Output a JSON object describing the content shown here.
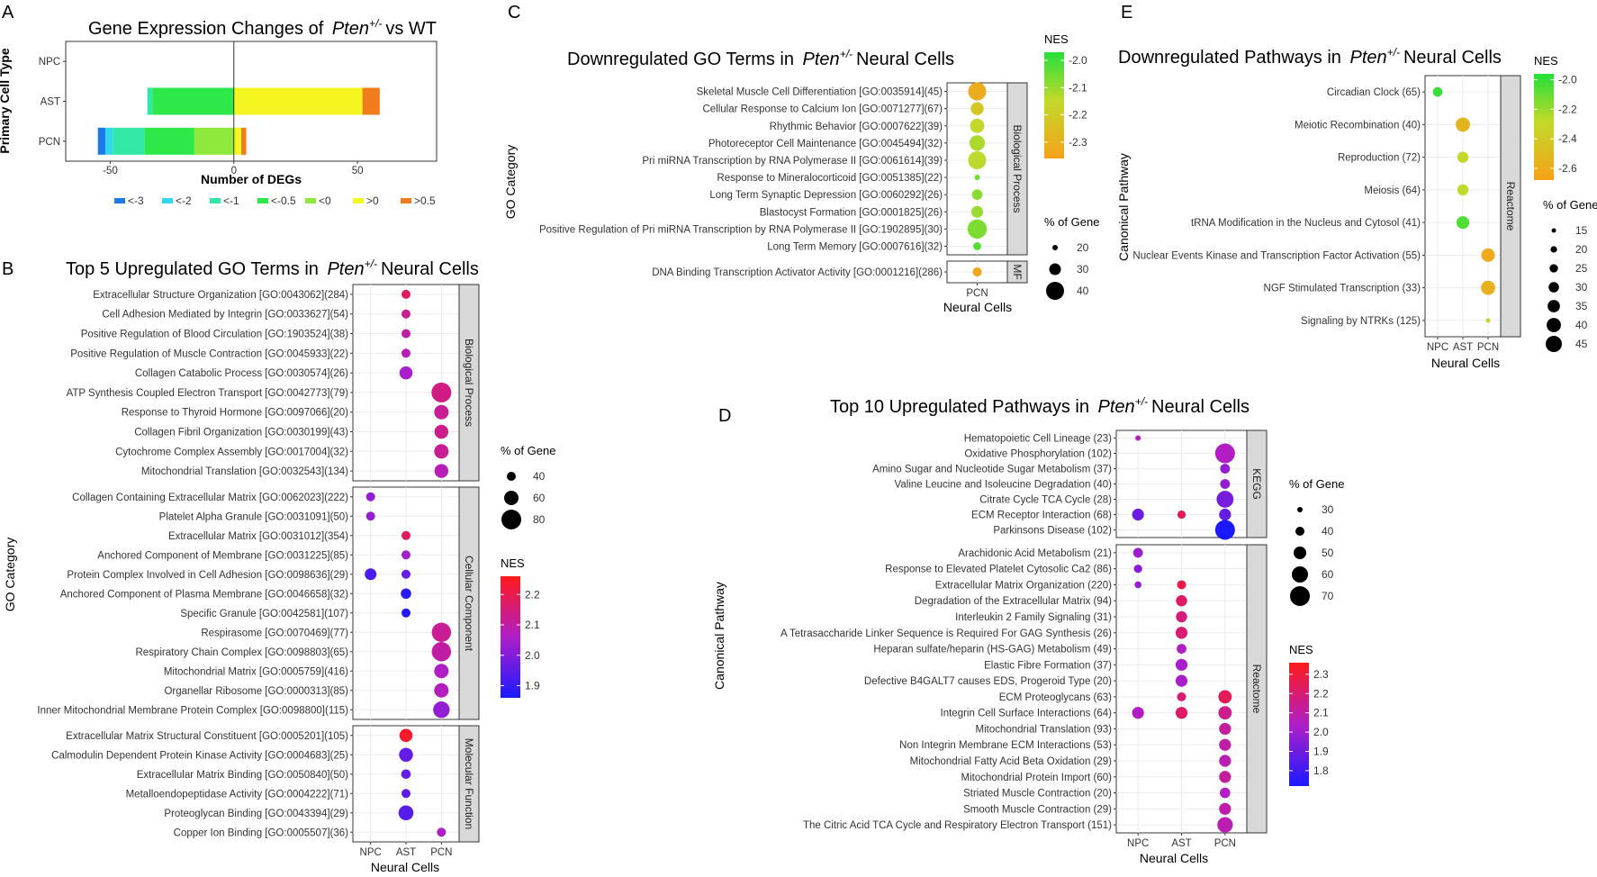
{
  "chart_data": [
    {
      "id": "A",
      "type": "bar",
      "panel_letter": "A",
      "title_pre": "Gene Expression Changes of",
      "title_gene": "Pten",
      "title_sup": "+/-",
      "title_post": "vs WT",
      "xlabel": "Number of DEGs",
      "ylabel": "Primary Cell Type",
      "categories": [
        "NPC",
        "AST",
        "PCN"
      ],
      "xlim": [
        -68,
        82
      ],
      "xticks": [
        -50,
        0,
        50
      ],
      "xtick_labels": [
        "-50",
        "0",
        "50"
      ],
      "legend": [
        {
          "label": "<-3",
          "color": "#1f77e8"
        },
        {
          "label": "<-2",
          "color": "#33d6f0"
        },
        {
          "label": "<-1",
          "color": "#33e8a6"
        },
        {
          "label": "<-0.5",
          "color": "#2ee84a"
        },
        {
          "label": "<0",
          "color": "#8fe83c"
        },
        {
          "label": ">0",
          "color": "#f5f520"
        },
        {
          "label": ">0.5",
          "color": "#f07c1c"
        }
      ],
      "series": [
        {
          "name": "<-3",
          "values": [
            0,
            0,
            -3
          ]
        },
        {
          "name": "<-2",
          "values": [
            0,
            0,
            -3
          ]
        },
        {
          "name": "<-1",
          "values": [
            0,
            -2,
            -13
          ]
        },
        {
          "name": "<-0.5",
          "values": [
            0,
            -33,
            -20
          ]
        },
        {
          "name": "<0",
          "values": [
            0,
            0,
            -16
          ]
        },
        {
          "name": ">0",
          "values": [
            0,
            52,
            3
          ]
        },
        {
          "name": ">0.5",
          "values": [
            0,
            7,
            2
          ]
        }
      ]
    },
    {
      "id": "B",
      "type": "scatter",
      "panel_letter": "B",
      "title_pre": "Top 5 Upregulated GO Terms in",
      "title_gene": "Pten",
      "title_sup": "+/-",
      "title_post": "Neural Cells",
      "xlabel": "Neural Cells",
      "ylabel": "GO Category",
      "x_categories": [
        "NPC",
        "AST",
        "PCN"
      ],
      "facets": [
        {
          "label": "Biological Process",
          "terms": [
            "Extracellular Structure Organization [GO:0043062](284)",
            "Cell Adhesion Mediated by Integrin [GO:0033627](54)",
            "Positive Regulation of Blood Circulation [GO:1903524](38)",
            "Positive Regulation of Muscle Contraction [GO:0045933](22)",
            "Collagen Catabolic Process [GO:0030574](26)",
            "ATP Synthesis Coupled Electron Transport [GO:0042773](79)",
            "Response to Thyroid Hormone [GO:0097066](20)",
            "Collagen Fibril Organization [GO:0030199](43)",
            "Cytochrome Complex Assembly [GO:0017004](32)",
            "Mitochondrial Translation [GO:0032543](134)"
          ]
        },
        {
          "label": "Cellular Component",
          "terms": [
            "Collagen Containing Extracellular Matrix [GO:0062023](222)",
            "Platelet Alpha Granule [GO:0031091](50)",
            "Extracellular Matrix [GO:0031012](354)",
            "Anchored Component of Membrane [GO:0031225](85)",
            "Protein Complex Involved in Cell Adhesion [GO:0098636](29)",
            "Anchored Component of Plasma Membrane [GO:0046658](32)",
            "Specific Granule [GO:0042581](107)",
            "Respirasome [GO:0070469](77)",
            "Respiratory Chain Complex [GO:0098803](65)",
            "Mitochondrial Matrix [GO:0005759](416)",
            "Organellar Ribosome [GO:0000313](85)",
            "Inner Mitochondrial Membrane Protein Complex [GO:0098800](115)"
          ]
        },
        {
          "label": "Molecular Function",
          "terms": [
            "Extracellular Matrix Structural Constituent [GO:0005201](105)",
            "Calmodulin Dependent Protein Kinase Activity [GO:0004683](25)",
            "Extracellular Matrix Binding [GO:0050840](50)",
            "Metalloendopeptidase Activity [GO:0004222](71)",
            "Proteoglycan Binding [GO:0043394](29)",
            "Copper Ion Binding [GO:0005507](36)"
          ]
        }
      ],
      "points": [
        [
          0,
          0,
          1,
          40,
          2.18
        ],
        [
          0,
          1,
          1,
          40,
          2.12
        ],
        [
          0,
          2,
          1,
          38,
          2.1
        ],
        [
          0,
          3,
          1,
          40,
          2.08
        ],
        [
          0,
          4,
          1,
          55,
          2.05
        ],
        [
          0,
          5,
          2,
          80,
          2.14
        ],
        [
          0,
          6,
          2,
          60,
          2.12
        ],
        [
          0,
          7,
          2,
          58,
          2.13
        ],
        [
          0,
          8,
          2,
          60,
          2.12
        ],
        [
          0,
          9,
          2,
          58,
          2.08
        ],
        [
          1,
          0,
          0,
          35,
          2.02
        ],
        [
          1,
          1,
          0,
          40,
          2.02
        ],
        [
          1,
          2,
          1,
          35,
          2.18
        ],
        [
          1,
          3,
          1,
          38,
          2.04
        ],
        [
          1,
          4,
          0,
          50,
          1.93
        ],
        [
          1,
          4,
          1,
          38,
          1.96
        ],
        [
          1,
          5,
          1,
          45,
          1.88
        ],
        [
          1,
          6,
          1,
          10,
          1.87
        ],
        [
          1,
          7,
          2,
          78,
          2.12
        ],
        [
          1,
          8,
          2,
          78,
          2.1
        ],
        [
          1,
          9,
          2,
          60,
          2.06
        ],
        [
          1,
          10,
          2,
          60,
          2.07
        ],
        [
          1,
          11,
          2,
          68,
          2.02
        ],
        [
          2,
          0,
          1,
          55,
          2.24
        ],
        [
          2,
          1,
          1,
          58,
          1.96
        ],
        [
          2,
          2,
          1,
          42,
          1.96
        ],
        [
          2,
          3,
          1,
          40,
          1.95
        ],
        [
          2,
          4,
          1,
          62,
          1.94
        ],
        [
          2,
          5,
          2,
          40,
          2.06
        ]
      ],
      "size_legend": {
        "title": "% of Gene",
        "values": [
          40,
          60,
          80
        ]
      },
      "color_legend": {
        "title": "NES",
        "ticks": [
          1.9,
          2.0,
          2.1,
          2.2
        ],
        "range": [
          1.86,
          2.26
        ]
      }
    },
    {
      "id": "C",
      "type": "scatter",
      "panel_letter": "C",
      "title_pre": "Downregulated GO Terms in",
      "title_gene": "Pten",
      "title_sup": "+/-",
      "title_post": "Neural Cells",
      "xlabel": "Neural Cells",
      "ylabel": "GO Category",
      "x_categories": [
        "PCN"
      ],
      "facets": [
        {
          "label": "Biological Process",
          "terms": [
            "Skeletal Muscle Cell Differentiation [GO:0035914](45)",
            "Cellular Response to Calcium Ion [GO:0071277](67)",
            "Rhythmic Behavior [GO:0007622](39)",
            "Photoreceptor Cell Maintenance [GO:0045494](32)",
            "Pri miRNA Transcription by RNA Polymerase II [GO:0061614](39)",
            "Response to Mineralocorticoid [GO:0051385](22)",
            "Long Term Synaptic Depression [GO:0060292](26)",
            "Blastocyst Formation [GO:0001825](26)",
            "Positive Regulation of Pri miRNA Transcription by RNA Polymerase II [GO:1902895](30)",
            "Long Term Memory [GO:0007616](32)"
          ]
        },
        {
          "label": "MF",
          "terms": [
            "DNA Binding Transcription Activator Activity [GO:0001216](286)"
          ]
        }
      ],
      "points": [
        [
          0,
          0,
          0,
          40,
          -2.32
        ],
        [
          0,
          1,
          0,
          32,
          -2.22
        ],
        [
          0,
          2,
          0,
          34,
          -2.15
        ],
        [
          0,
          3,
          0,
          36,
          -2.12
        ],
        [
          0,
          4,
          0,
          40,
          -2.14
        ],
        [
          0,
          5,
          0,
          12,
          -2.05
        ],
        [
          0,
          6,
          0,
          28,
          -2.08
        ],
        [
          0,
          7,
          0,
          30,
          -2.1
        ],
        [
          0,
          8,
          0,
          42,
          -2.07
        ],
        [
          0,
          9,
          0,
          24,
          -2.02
        ],
        [
          1,
          0,
          0,
          26,
          -2.33
        ]
      ],
      "size_legend": {
        "title": "% of Gene",
        "values": [
          20,
          30,
          40
        ]
      },
      "color_legend": {
        "title": "NES",
        "ticks": [
          -2.0,
          -2.1,
          -2.2,
          -2.3
        ],
        "range": [
          -2.36,
          -1.97
        ]
      }
    },
    {
      "id": "D",
      "type": "scatter",
      "panel_letter": "D",
      "title_pre": "Top 10 Upregulated Pathways in",
      "title_gene": "Pten",
      "title_sup": "+/-",
      "title_post": "Neural Cells",
      "xlabel": "Neural Cells",
      "ylabel": "Canonical Pathway",
      "x_categories": [
        "NPC",
        "AST",
        "PCN"
      ],
      "facets": [
        {
          "label": "KEGG",
          "terms": [
            "Hematopoietic Cell Lineage (23)",
            "Oxidative Phosphorylation (102)",
            "Amino Sugar and Nucleotide Sugar Metabolism (37)",
            "Valine Leucine and Isoleucine Degradation (40)",
            "Citrate Cycle TCA Cycle (28)",
            "ECM Receptor Interaction (68)",
            "Parkinsons Disease (102)"
          ]
        },
        {
          "label": "Reactome",
          "terms": [
            "Arachidonic Acid Metabolism (21)",
            "Response to Elevated Platelet Cytosolic Ca2 (86)",
            "Extracellular Matrix Organization (220)",
            "Degradation of the Extracellular Matrix (94)",
            "Interleukin 2 Family Signaling (31)",
            "A Tetrasaccharide Linker Sequence is Required For GAG Synthesis (26)",
            "Heparan sulfate/heparin (HS-GAG) Metabolism (49)",
            "Elastic Fibre Formation (37)",
            "Defective B4GALT7 causes EDS, Progeroid Type (20)",
            "ECM Proteoglycans (63)",
            "Integrin Cell Surface Interactions (64)",
            "Mitochondrial Translation (93)",
            "Non Integrin Membrane ECM Interactions (53)",
            "Mitochondrial Fatty Acid Beta Oxidation (29)",
            "Mitochondrial Protein Import (60)",
            "Striated Muscle Contraction (20)",
            "Smooth Muscle Contraction (29)",
            "The Citric Acid TCA Cycle and Respiratory Electron Transport (151)"
          ]
        }
      ],
      "points": [
        [
          0,
          0,
          0,
          22,
          2.05
        ],
        [
          0,
          1,
          2,
          70,
          2.05
        ],
        [
          0,
          2,
          2,
          42,
          1.98
        ],
        [
          0,
          3,
          2,
          42,
          1.98
        ],
        [
          0,
          4,
          2,
          62,
          1.92
        ],
        [
          0,
          5,
          0,
          48,
          1.9
        ],
        [
          0,
          5,
          1,
          38,
          2.25
        ],
        [
          0,
          5,
          2,
          48,
          1.88
        ],
        [
          0,
          6,
          2,
          70,
          1.72
        ],
        [
          1,
          0,
          0,
          42,
          2.0
        ],
        [
          1,
          1,
          0,
          38,
          1.95
        ],
        [
          1,
          2,
          0,
          34,
          1.98
        ],
        [
          1,
          2,
          1,
          40,
          2.28
        ],
        [
          1,
          3,
          1,
          46,
          2.22
        ],
        [
          1,
          4,
          1,
          46,
          2.18
        ],
        [
          1,
          5,
          1,
          48,
          2.2
        ],
        [
          1,
          6,
          1,
          42,
          2.05
        ],
        [
          1,
          7,
          1,
          48,
          2.02
        ],
        [
          1,
          8,
          1,
          48,
          2.02
        ],
        [
          1,
          9,
          1,
          40,
          2.2
        ],
        [
          1,
          9,
          2,
          52,
          2.25
        ],
        [
          1,
          10,
          0,
          48,
          2.05
        ],
        [
          1,
          10,
          1,
          48,
          2.22
        ],
        [
          1,
          10,
          2,
          52,
          2.15
        ],
        [
          1,
          11,
          2,
          48,
          2.12
        ],
        [
          1,
          12,
          2,
          48,
          2.1
        ],
        [
          1,
          13,
          2,
          48,
          2.08
        ],
        [
          1,
          14,
          2,
          48,
          2.12
        ],
        [
          1,
          15,
          2,
          44,
          2.05
        ],
        [
          1,
          16,
          2,
          48,
          2.1
        ],
        [
          1,
          17,
          2,
          58,
          2.08
        ]
      ],
      "size_legend": {
        "title": "% of Gene",
        "values": [
          30,
          40,
          50,
          60,
          70
        ]
      },
      "color_legend": {
        "title": "NES",
        "ticks": [
          1.8,
          1.9,
          2.0,
          2.1,
          2.2,
          2.3
        ],
        "range": [
          1.72,
          2.36
        ]
      }
    },
    {
      "id": "E",
      "type": "scatter",
      "panel_letter": "E",
      "title_pre": "Downregulated Pathways in",
      "title_gene": "Pten",
      "title_sup": "+/-",
      "title_post": "Neural Cells",
      "xlabel": "Neural Cells",
      "ylabel": "Canonical Pathway",
      "x_categories": [
        "NPC",
        "AST",
        "PCN"
      ],
      "facets": [
        {
          "label": "Reactome",
          "terms": [
            "Circadian Clock (65)",
            "Meiotic Recombination (40)",
            "Reproduction (72)",
            "Meiosis (64)",
            "tRNA Modification in the Nucleus and Cytosol (41)",
            "Nuclear Events Kinase and Transcription Factor Activation  (55)",
            "NGF Stimulated Transcription (33)",
            "Signaling by NTRKs (125)"
          ]
        }
      ],
      "points": [
        [
          0,
          0,
          0,
          28,
          -2.0
        ],
        [
          0,
          1,
          1,
          40,
          -2.55
        ],
        [
          0,
          2,
          1,
          32,
          -2.3
        ],
        [
          0,
          3,
          1,
          32,
          -2.28
        ],
        [
          0,
          4,
          1,
          36,
          -2.05
        ],
        [
          0,
          5,
          2,
          38,
          -2.62
        ],
        [
          0,
          6,
          2,
          40,
          -2.58
        ],
        [
          0,
          7,
          2,
          12,
          -2.35
        ]
      ],
      "size_legend": {
        "title": "% of Gene",
        "values": [
          15,
          20,
          25,
          30,
          35,
          40,
          45
        ]
      },
      "color_legend": {
        "title": "NES",
        "ticks": [
          -2.0,
          -2.2,
          -2.4,
          -2.6
        ],
        "range": [
          -2.68,
          -1.96
        ]
      }
    }
  ]
}
